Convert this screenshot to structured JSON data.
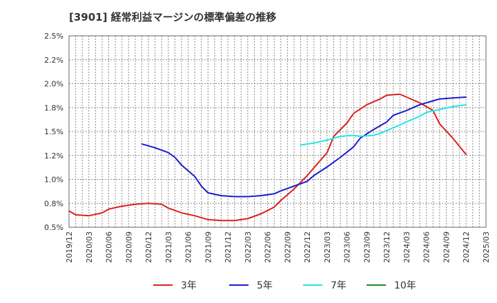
{
  "chart_data": {
    "type": "line",
    "title": "[3901]  経常利益マージンの標準偏差の推移",
    "xlabel": "",
    "ylabel": "",
    "ylim": [
      0.5,
      2.5
    ],
    "y_ticks": [
      "2.5%",
      "2.2%",
      "2.0%",
      "1.8%",
      "1.5%",
      "1.2%",
      "1.0%",
      "0.8%",
      "0.5%"
    ],
    "x_ticks": [
      "2019/12",
      "2020/03",
      "2020/06",
      "2020/09",
      "2020/12",
      "2021/03",
      "2021/06",
      "2021/09",
      "2021/12",
      "2022/03",
      "2022/06",
      "2022/09",
      "2022/12",
      "2023/03",
      "2023/06",
      "2023/09",
      "2023/12",
      "2024/03",
      "2024/06",
      "2024/09",
      "2024/12",
      "2025/03"
    ],
    "grid": true,
    "legend": "bottom",
    "series": [
      {
        "name": "3年",
        "color": "#dd1f1f",
        "points": [
          [
            "2019/12",
            0.67
          ],
          [
            "2020/01",
            0.63
          ],
          [
            "2020/03",
            0.62
          ],
          [
            "2020/05",
            0.65
          ],
          [
            "2020/06",
            0.69
          ],
          [
            "2020/08",
            0.72
          ],
          [
            "2020/10",
            0.74
          ],
          [
            "2020/12",
            0.75
          ],
          [
            "2021/02",
            0.74
          ],
          [
            "2021/03",
            0.7
          ],
          [
            "2021/05",
            0.65
          ],
          [
            "2021/07",
            0.62
          ],
          [
            "2021/08",
            0.6
          ],
          [
            "2021/09",
            0.58
          ],
          [
            "2021/11",
            0.57
          ],
          [
            "2022/01",
            0.57
          ],
          [
            "2022/03",
            0.59
          ],
          [
            "2022/05",
            0.64
          ],
          [
            "2022/07",
            0.71
          ],
          [
            "2022/08",
            0.78
          ],
          [
            "2022/10",
            0.9
          ],
          [
            "2022/12",
            1.04
          ],
          [
            "2023/01",
            1.12
          ],
          [
            "2023/03",
            1.28
          ],
          [
            "2023/04",
            1.45
          ],
          [
            "2023/06",
            1.59
          ],
          [
            "2023/07",
            1.69
          ],
          [
            "2023/09",
            1.78
          ],
          [
            "2023/11",
            1.84
          ],
          [
            "2023/12",
            1.88
          ],
          [
            "2024/02",
            1.89
          ],
          [
            "2024/03",
            1.86
          ],
          [
            "2024/05",
            1.8
          ],
          [
            "2024/07",
            1.72
          ],
          [
            "2024/08",
            1.58
          ],
          [
            "2024/10",
            1.43
          ],
          [
            "2024/12",
            1.26
          ]
        ]
      },
      {
        "name": "5年",
        "color": "#1a1acc",
        "points": [
          [
            "2020/11",
            1.37
          ],
          [
            "2021/01",
            1.33
          ],
          [
            "2021/03",
            1.28
          ],
          [
            "2021/04",
            1.23
          ],
          [
            "2021/05",
            1.15
          ],
          [
            "2021/07",
            1.03
          ],
          [
            "2021/08",
            0.93
          ],
          [
            "2021/09",
            0.86
          ],
          [
            "2021/11",
            0.83
          ],
          [
            "2022/01",
            0.82
          ],
          [
            "2022/03",
            0.82
          ],
          [
            "2022/05",
            0.83
          ],
          [
            "2022/07",
            0.85
          ],
          [
            "2022/08",
            0.88
          ],
          [
            "2022/10",
            0.93
          ],
          [
            "2022/12",
            0.98
          ],
          [
            "2023/01",
            1.04
          ],
          [
            "2023/03",
            1.13
          ],
          [
            "2023/05",
            1.23
          ],
          [
            "2023/07",
            1.34
          ],
          [
            "2023/08",
            1.43
          ],
          [
            "2023/10",
            1.52
          ],
          [
            "2023/12",
            1.6
          ],
          [
            "2024/01",
            1.67
          ],
          [
            "2024/03",
            1.72
          ],
          [
            "2024/05",
            1.78
          ],
          [
            "2024/07",
            1.82
          ],
          [
            "2024/08",
            1.84
          ],
          [
            "2024/10",
            1.85
          ],
          [
            "2024/12",
            1.86
          ]
        ]
      },
      {
        "name": "7年",
        "color": "#22e5e5",
        "points": [
          [
            "2022/11",
            1.36
          ],
          [
            "2023/01",
            1.38
          ],
          [
            "2023/03",
            1.41
          ],
          [
            "2023/05",
            1.45
          ],
          [
            "2023/07",
            1.46
          ],
          [
            "2023/08",
            1.45
          ],
          [
            "2023/10",
            1.46
          ],
          [
            "2023/11",
            1.48
          ],
          [
            "2024/01",
            1.54
          ],
          [
            "2024/03",
            1.6
          ],
          [
            "2024/05",
            1.66
          ],
          [
            "2024/06",
            1.7
          ],
          [
            "2024/08",
            1.73
          ],
          [
            "2024/10",
            1.76
          ],
          [
            "2024/12",
            1.78
          ]
        ]
      },
      {
        "name": "10年",
        "color": "#1f8a1f",
        "points": []
      }
    ]
  }
}
